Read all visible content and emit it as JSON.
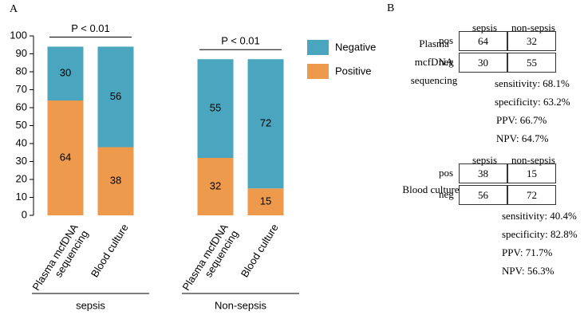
{
  "chart_data": {
    "type": "bar",
    "stacked": true,
    "panel_label": "A",
    "categories": [
      "Plasma mcfDNA sequencing",
      "Blood culture",
      "Plasma mcfDNA sequencing",
      "Blood culture"
    ],
    "groups": [
      "sepsis",
      "Non-sepsis"
    ],
    "series": [
      {
        "name": "Positive",
        "color": "#EE9A4D",
        "values": [
          64,
          38,
          32,
          15
        ]
      },
      {
        "name": "Negative",
        "color": "#4AA5BE",
        "values": [
          30,
          56,
          55,
          72
        ]
      }
    ],
    "ylim": [
      0,
      100
    ],
    "yticks": [
      0,
      10,
      20,
      30,
      40,
      50,
      60,
      70,
      80,
      90,
      100
    ],
    "legend": "right",
    "annotations": [
      "P < 0.01",
      "P < 0.01"
    ]
  },
  "panel_b": {
    "label": "B",
    "tables": [
      {
        "row_title": "Plasma mcfDNA sequencing",
        "columns": [
          "sepsis",
          "non-sepsis"
        ],
        "rows": [
          {
            "label": "pos",
            "cells": [
              64,
              32
            ]
          },
          {
            "label": "neg",
            "cells": [
              30,
              55
            ]
          }
        ],
        "stats": [
          "sensitivity: 68.1%",
          "specificity: 63.2%",
          "PPV: 66.7%",
          "NPV: 64.7%"
        ]
      },
      {
        "row_title": "Blood culture",
        "columns": [
          "sepsis",
          "non-sepsis"
        ],
        "rows": [
          {
            "label": "pos",
            "cells": [
              38,
              15
            ]
          },
          {
            "label": "neg",
            "cells": [
              56,
              72
            ]
          }
        ],
        "stats": [
          "sensitivity: 40.4%",
          "specificity: 82.8%",
          "PPV: 71.7%",
          "NPV: 56.3%"
        ]
      }
    ]
  }
}
